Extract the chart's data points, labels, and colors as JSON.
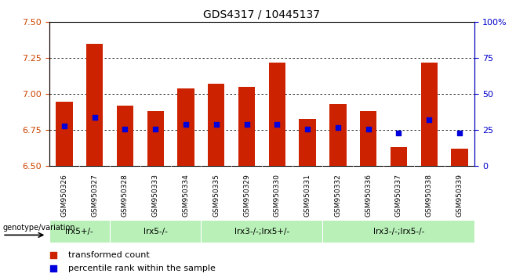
{
  "title": "GDS4317 / 10445137",
  "samples": [
    "GSM950326",
    "GSM950327",
    "GSM950328",
    "GSM950333",
    "GSM950334",
    "GSM950335",
    "GSM950329",
    "GSM950330",
    "GSM950331",
    "GSM950332",
    "GSM950336",
    "GSM950337",
    "GSM950338",
    "GSM950339"
  ],
  "bar_tops": [
    6.95,
    7.35,
    6.92,
    6.88,
    7.04,
    7.07,
    7.05,
    7.22,
    6.83,
    6.93,
    6.88,
    6.63,
    7.22,
    6.62
  ],
  "bar_base": 6.5,
  "blue_dots": [
    6.78,
    6.84,
    6.76,
    6.76,
    6.79,
    6.79,
    6.79,
    6.79,
    6.76,
    6.77,
    6.76,
    6.73,
    6.82,
    6.73
  ],
  "groups": [
    {
      "label": "lrx5+/-",
      "start": 0,
      "end": 1
    },
    {
      "label": "lrx5-/-",
      "start": 2,
      "end": 4
    },
    {
      "label": "lrx3-/-;lrx5+/-",
      "start": 5,
      "end": 8
    },
    {
      "label": "lrx3-/-;lrx5-/-",
      "start": 9,
      "end": 13
    }
  ],
  "ylim_left": [
    6.5,
    7.5
  ],
  "ylim_right": [
    0,
    100
  ],
  "yticks_left": [
    6.5,
    6.75,
    7.0,
    7.25,
    7.5
  ],
  "yticks_right": [
    0,
    25,
    50,
    75,
    100
  ],
  "bar_color": "#cc2200",
  "dot_color": "#0000dd",
  "left_tick_color": "#cc4400",
  "right_tick_color": "#0000cc",
  "legend_items": [
    "transformed count",
    "percentile rank within the sample"
  ],
  "bar_width": 0.55,
  "group_bg_color": "#b8f0b8",
  "sample_bg_color": "#d8d8d8"
}
